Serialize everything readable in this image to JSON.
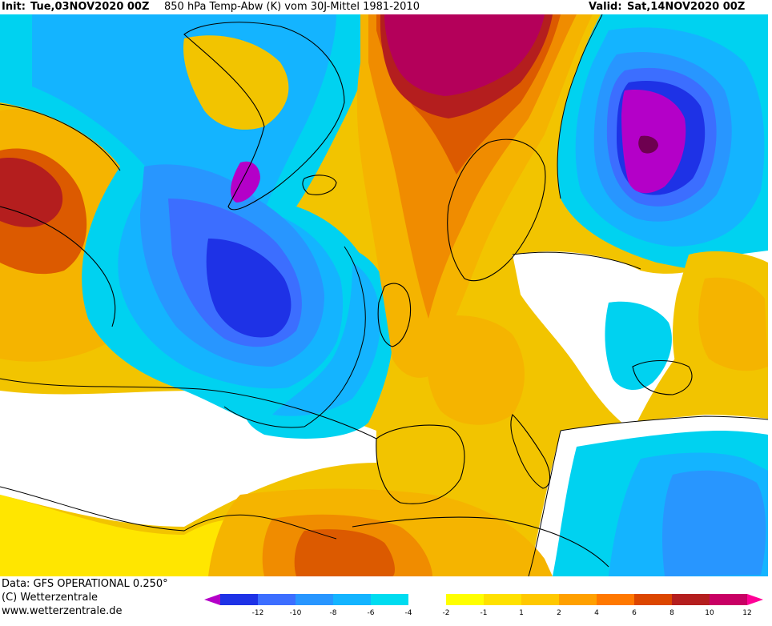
{
  "header": {
    "init_label": "Init:",
    "init_value": "Tue,03NOV2020 00Z",
    "title": "850 hPa Temp-Abw (K) vom 30J-Mittel 1981-2010",
    "valid_label": "Valid:",
    "valid_value": "Sat,14NOV2020 00Z"
  },
  "footer": {
    "data_line": "Data: GFS OPERATIONAL 0.250°",
    "copyright_line": "(C) Wetterzentrale",
    "url_line": "www.wetterzentrale.de"
  },
  "legend": {
    "ticks": [
      "-12",
      "-10",
      "-8",
      "-6",
      "-4",
      "-2",
      "-1",
      "1",
      "2",
      "4",
      "6",
      "8",
      "10",
      "12"
    ],
    "colors": [
      "#b400c8",
      "#1e32e6",
      "#3c6eff",
      "#2896ff",
      "#14b4ff",
      "#00dcf0",
      "#ffffff",
      "#ffff00",
      "#ffe100",
      "#ffc800",
      "#ffa000",
      "#ff7800",
      "#dc4600",
      "#b41e1e",
      "#c80064",
      "#ff0096"
    ]
  },
  "map_colors": {
    "magenta_dark": "#b4005a",
    "red_dark": "#b41e1e",
    "orange_dark": "#dc5a00",
    "orange": "#f08c00",
    "orange_light": "#f5b400",
    "yellow": "#f2c400",
    "yellow_light": "#ffe600",
    "white": "#ffffff",
    "cyan": "#00d2f0",
    "blue_light": "#14b4ff",
    "blue": "#2896ff",
    "blue_mid": "#3c6eff",
    "blue_dark": "#1e32e6",
    "purple": "#b400c8",
    "purple_dark": "#6e0050"
  }
}
